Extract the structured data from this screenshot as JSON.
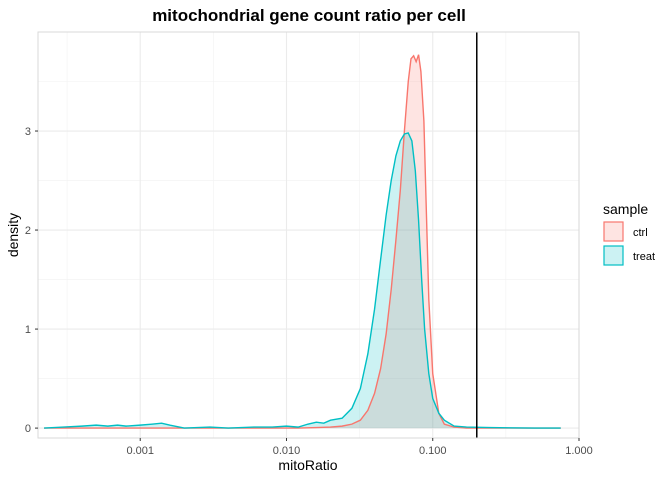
{
  "chart_data": {
    "type": "area",
    "title": "mitochondrial gene count ratio per cell",
    "xlabel": "mitoRatio",
    "ylabel": "density",
    "x_scale": "log10",
    "xlim": [
      0.0002,
      1.0
    ],
    "ylim": [
      -0.1,
      4.0
    ],
    "x_ticks": [
      0.001,
      0.01,
      0.1,
      1.0
    ],
    "x_tick_labels": [
      "0.001",
      "0.010",
      "0.100",
      "1.000"
    ],
    "y_ticks": [
      0,
      1,
      2,
      3
    ],
    "y_tick_labels": [
      "0",
      "1",
      "2",
      "3"
    ],
    "grid": true,
    "legend_position": "right",
    "legend_title": "sample",
    "threshold_line": {
      "x": 0.2,
      "color": "#000000"
    },
    "series": [
      {
        "name": "ctrl",
        "color": "#F8766D",
        "fill": "#F8766D",
        "points": [
          [
            0.00022,
            0.0
          ],
          [
            0.0005,
            0.0
          ],
          [
            0.001,
            0.0
          ],
          [
            0.002,
            0.0
          ],
          [
            0.004,
            0.0
          ],
          [
            0.008,
            0.0
          ],
          [
            0.012,
            0.0
          ],
          [
            0.016,
            0.005
          ],
          [
            0.02,
            0.01
          ],
          [
            0.024,
            0.02
          ],
          [
            0.028,
            0.04
          ],
          [
            0.032,
            0.08
          ],
          [
            0.036,
            0.18
          ],
          [
            0.04,
            0.35
          ],
          [
            0.044,
            0.6
          ],
          [
            0.048,
            0.95
          ],
          [
            0.052,
            1.4
          ],
          [
            0.056,
            1.9
          ],
          [
            0.06,
            2.4
          ],
          [
            0.064,
            3.0
          ],
          [
            0.068,
            3.5
          ],
          [
            0.071,
            3.73
          ],
          [
            0.074,
            3.76
          ],
          [
            0.077,
            3.7
          ],
          [
            0.08,
            3.77
          ],
          [
            0.083,
            3.6
          ],
          [
            0.087,
            3.1
          ],
          [
            0.09,
            2.3
          ],
          [
            0.094,
            1.3
          ],
          [
            0.1,
            0.55
          ],
          [
            0.11,
            0.15
          ],
          [
            0.12,
            0.04
          ],
          [
            0.14,
            0.01
          ],
          [
            0.17,
            0.0
          ],
          [
            0.25,
            0.0
          ],
          [
            0.5,
            0.0
          ],
          [
            0.75,
            0.0
          ]
        ]
      },
      {
        "name": "treat",
        "color": "#00BFC4",
        "fill": "#00BFC4",
        "points": [
          [
            0.00022,
            0.0
          ],
          [
            0.0003,
            0.01
          ],
          [
            0.0004,
            0.02
          ],
          [
            0.0005,
            0.03
          ],
          [
            0.0006,
            0.02
          ],
          [
            0.0007,
            0.03
          ],
          [
            0.0008,
            0.02
          ],
          [
            0.001,
            0.03
          ],
          [
            0.0012,
            0.04
          ],
          [
            0.0014,
            0.05
          ],
          [
            0.0016,
            0.03
          ],
          [
            0.002,
            0.0
          ],
          [
            0.003,
            0.01
          ],
          [
            0.004,
            0.0
          ],
          [
            0.006,
            0.01
          ],
          [
            0.008,
            0.01
          ],
          [
            0.01,
            0.02
          ],
          [
            0.012,
            0.01
          ],
          [
            0.014,
            0.04
          ],
          [
            0.016,
            0.06
          ],
          [
            0.018,
            0.05
          ],
          [
            0.02,
            0.08
          ],
          [
            0.024,
            0.1
          ],
          [
            0.028,
            0.2
          ],
          [
            0.032,
            0.4
          ],
          [
            0.036,
            0.75
          ],
          [
            0.04,
            1.2
          ],
          [
            0.044,
            1.7
          ],
          [
            0.048,
            2.15
          ],
          [
            0.052,
            2.5
          ],
          [
            0.056,
            2.75
          ],
          [
            0.06,
            2.9
          ],
          [
            0.064,
            2.97
          ],
          [
            0.068,
            2.98
          ],
          [
            0.072,
            2.9
          ],
          [
            0.076,
            2.6
          ],
          [
            0.08,
            2.1
          ],
          [
            0.084,
            1.5
          ],
          [
            0.088,
            1.0
          ],
          [
            0.094,
            0.55
          ],
          [
            0.1,
            0.3
          ],
          [
            0.11,
            0.15
          ],
          [
            0.12,
            0.08
          ],
          [
            0.14,
            0.02
          ],
          [
            0.17,
            0.01
          ],
          [
            0.25,
            0.005
          ],
          [
            0.5,
            0.0
          ],
          [
            0.75,
            0.0
          ]
        ]
      }
    ]
  }
}
